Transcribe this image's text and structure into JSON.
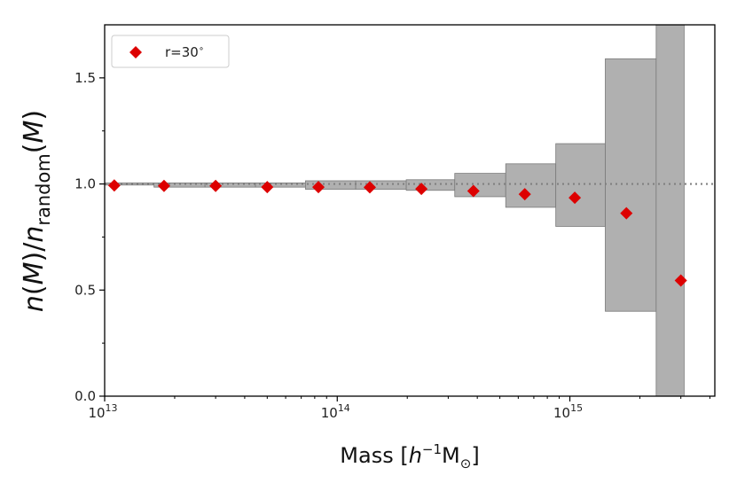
{
  "chart_data": {
    "type": "scatter",
    "xscale": "log",
    "xlim": [
      10000000000000.0,
      4200000000000000.0
    ],
    "ylim": [
      0.0,
      1.75
    ],
    "xlabel": {
      "main": "Mass [",
      "italic": "h",
      "sup": "−1",
      "unit": "M",
      "sub": "⊙",
      "close": "]"
    },
    "ylabel": {
      "n": "n",
      "open": "(",
      "M": "M",
      "mid": ")/",
      "n2": "n",
      "sub": "random",
      "open2": "(",
      "M2": "M",
      "close": ")"
    },
    "x_ticks": [
      {
        "value": 10000000000000.0,
        "base": "10",
        "exp": "13"
      },
      {
        "value": 100000000000000.0,
        "base": "10",
        "exp": "14"
      },
      {
        "value": 1000000000000000.0,
        "base": "10",
        "exp": "15"
      }
    ],
    "y_ticks": [
      {
        "value": 0.0,
        "label": "0.0"
      },
      {
        "value": 0.5,
        "label": "0.5"
      },
      {
        "value": 1.0,
        "label": "1.0"
      },
      {
        "value": 1.5,
        "label": "1.5"
      }
    ],
    "reference_line": {
      "y": 1.0,
      "style": "dotted",
      "color": "#808080"
    },
    "band": {
      "color": "#b0b0b0",
      "edge_color": "#7a7a7a",
      "bins": [
        {
          "x0": 10000000000000.0,
          "x1": 16300000000000.0,
          "lo": 0.995,
          "hi": 1.005
        },
        {
          "x0": 16300000000000.0,
          "x1": 27000000000000.0,
          "lo": 0.985,
          "hi": 1.005
        },
        {
          "x0": 27000000000000.0,
          "x1": 44500000000000.0,
          "lo": 0.985,
          "hi": 1.005
        },
        {
          "x0": 44500000000000.0,
          "x1": 73000000000000.0,
          "lo": 0.985,
          "hi": 1.005
        },
        {
          "x0": 73000000000000.0,
          "x1": 120000000000000.0,
          "lo": 0.975,
          "hi": 1.015
        },
        {
          "x0": 120000000000000.0,
          "x1": 198000000000000.0,
          "lo": 0.975,
          "hi": 1.015
        },
        {
          "x0": 198000000000000.0,
          "x1": 320000000000000.0,
          "lo": 0.97,
          "hi": 1.02
        },
        {
          "x0": 320000000000000.0,
          "x1": 530000000000000.0,
          "lo": 0.94,
          "hi": 1.05
        },
        {
          "x0": 530000000000000.0,
          "x1": 870000000000000.0,
          "lo": 0.89,
          "hi": 1.095
        },
        {
          "x0": 870000000000000.0,
          "x1": 1420000000000000.0,
          "lo": 0.8,
          "hi": 1.19
        },
        {
          "x0": 1420000000000000.0,
          "x1": 2350000000000000.0,
          "lo": 0.4,
          "hi": 1.59
        },
        {
          "x0": 2350000000000000.0,
          "x1": 3100000000000000.0,
          "lo": 0.0,
          "hi": 1.75
        }
      ]
    },
    "series": [
      {
        "name": "r=30$^\\circ$",
        "label": {
          "text": "r=30",
          "sup": "∘"
        },
        "marker": "diamond",
        "color": "#dd0000",
        "points": [
          {
            "x": 11000000000000.0,
            "y": 0.993
          },
          {
            "x": 18000000000000.0,
            "y": 0.991
          },
          {
            "x": 30000000000000.0,
            "y": 0.991
          },
          {
            "x": 50000000000000.0,
            "y": 0.985
          },
          {
            "x": 83000000000000.0,
            "y": 0.985
          },
          {
            "x": 138000000000000.0,
            "y": 0.984
          },
          {
            "x": 230000000000000.0,
            "y": 0.977
          },
          {
            "x": 385000000000000.0,
            "y": 0.967
          },
          {
            "x": 640000000000000.0,
            "y": 0.952
          },
          {
            "x": 1050000000000000.0,
            "y": 0.935
          },
          {
            "x": 1750000000000000.0,
            "y": 0.862
          },
          {
            "x": 3000000000000000.0,
            "y": 0.545
          }
        ]
      }
    ],
    "legend": {
      "position": "top-left"
    },
    "grid": false
  }
}
